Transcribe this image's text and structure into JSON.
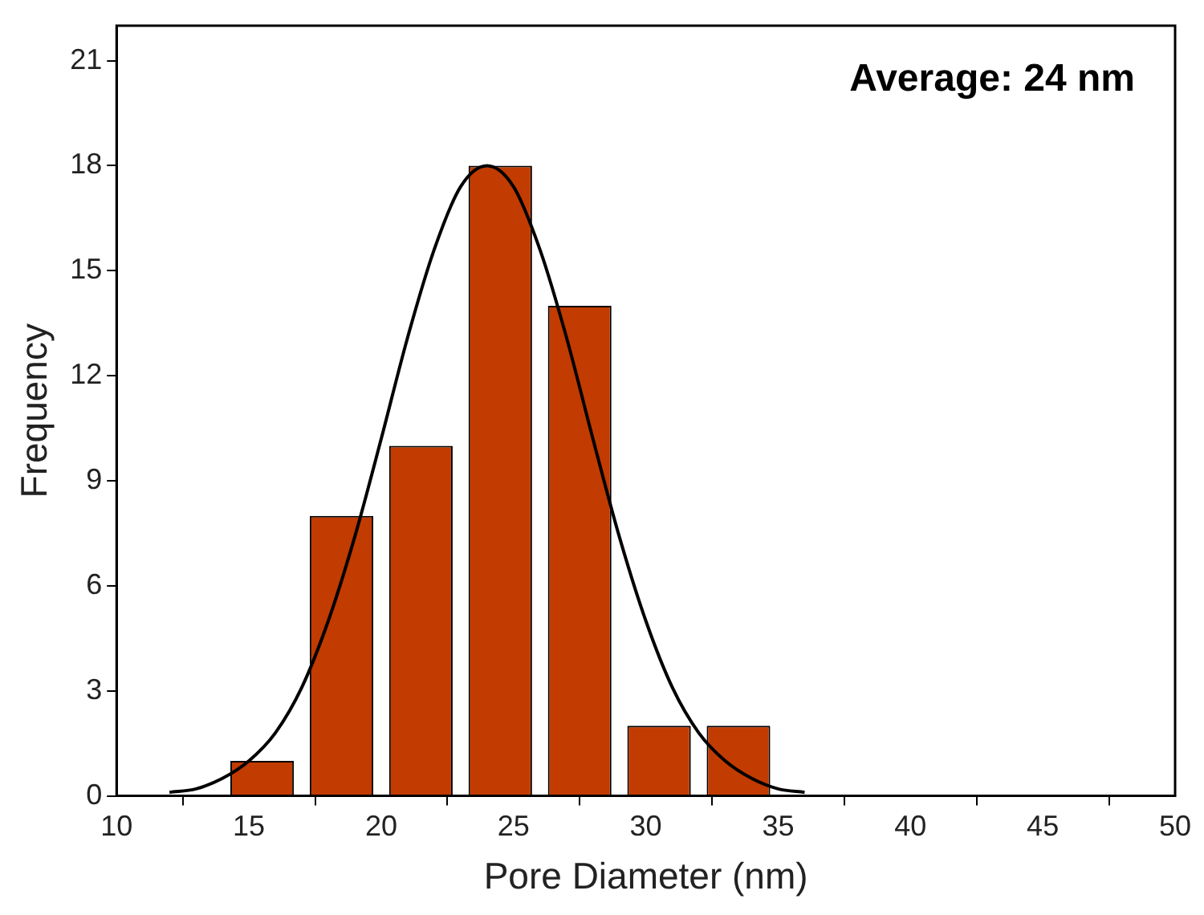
{
  "chart_data": {
    "type": "histogram",
    "xlabel": "Pore Diameter (nm)",
    "ylabel": "Frequency",
    "annotations": [
      "Average: 24 nm"
    ],
    "xlim": [
      10,
      50
    ],
    "xticks": [
      10,
      15,
      20,
      25,
      30,
      35,
      40,
      45,
      50
    ],
    "ylim": [
      0,
      22
    ],
    "yticks": [
      0,
      3,
      6,
      9,
      12,
      15,
      18,
      21
    ],
    "grid": false,
    "legend": false,
    "series": [
      {
        "color": "#c23b00",
        "bins": [
          14,
          17,
          20,
          23,
          26,
          29,
          32,
          35
        ],
        "values": [
          1,
          8,
          10,
          18,
          14,
          2,
          2
        ]
      },
      {
        "type": "line",
        "color": "#000000",
        "marker": "none",
        "x": [
          12,
          13,
          14,
          15,
          16,
          17,
          18,
          19,
          20,
          21,
          22,
          23,
          24,
          25,
          26,
          27,
          28,
          29,
          30,
          31,
          32,
          33,
          34,
          35,
          36
        ],
        "values": [
          0.1,
          0.2,
          0.5,
          1.0,
          1.8,
          3.1,
          5.0,
          7.4,
          10.2,
          13.1,
          15.6,
          17.4,
          18,
          17.4,
          15.6,
          13.1,
          10.2,
          7.4,
          5.0,
          3.1,
          1.8,
          1.0,
          0.5,
          0.2,
          0.1
        ]
      }
    ]
  }
}
